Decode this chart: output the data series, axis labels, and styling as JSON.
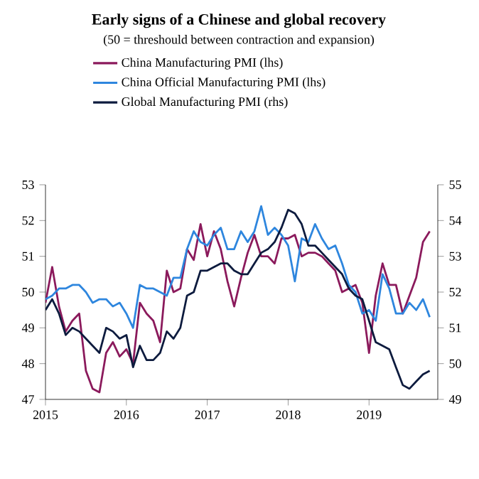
{
  "chart_data": {
    "type": "line",
    "title": "Early signs of a Chinese and global recovery",
    "subtitle": "(50 = threshould between contraction and expansion)",
    "x": [
      2015.0,
      2015.083,
      2015.167,
      2015.25,
      2015.333,
      2015.417,
      2015.5,
      2015.583,
      2015.667,
      2015.75,
      2015.833,
      2015.917,
      2016.0,
      2016.083,
      2016.167,
      2016.25,
      2016.333,
      2016.417,
      2016.5,
      2016.583,
      2016.667,
      2016.75,
      2016.833,
      2016.917,
      2017.0,
      2017.083,
      2017.167,
      2017.25,
      2017.333,
      2017.417,
      2017.5,
      2017.583,
      2017.667,
      2017.75,
      2017.833,
      2017.917,
      2018.0,
      2018.083,
      2018.167,
      2018.25,
      2018.333,
      2018.417,
      2018.5,
      2018.583,
      2018.667,
      2018.75,
      2018.833,
      2018.917,
      2019.0,
      2019.083,
      2019.167,
      2019.25,
      2019.333,
      2019.417,
      2019.5,
      2019.583,
      2019.667,
      2019.75
    ],
    "series": [
      {
        "name": "China Manufacturing PMI (lhs)",
        "color": "#8b1a5c",
        "values": [
          49.7,
          50.7,
          49.6,
          48.9,
          49.2,
          49.4,
          47.8,
          47.3,
          47.2,
          48.3,
          48.6,
          48.2,
          48.4,
          48.0,
          49.7,
          49.4,
          49.2,
          48.6,
          50.6,
          50.0,
          50.1,
          51.2,
          50.9,
          51.9,
          51.0,
          51.7,
          51.2,
          50.3,
          49.6,
          50.4,
          51.1,
          51.6,
          51.0,
          51.0,
          50.8,
          51.5,
          51.5,
          51.6,
          51.0,
          51.1,
          51.1,
          51.0,
          50.8,
          50.6,
          50.0,
          50.1,
          50.2,
          49.7,
          48.3,
          49.9,
          50.8,
          50.2,
          50.2,
          49.4,
          49.9,
          50.4,
          51.4,
          51.7
        ]
      },
      {
        "name": "China Official Manufacturing PMI (lhs)",
        "color": "#2e86de",
        "values": [
          49.8,
          49.9,
          50.1,
          50.1,
          50.2,
          50.2,
          50.0,
          49.7,
          49.8,
          49.8,
          49.6,
          49.7,
          49.4,
          49.0,
          50.2,
          50.1,
          50.1,
          50.0,
          49.9,
          50.4,
          50.4,
          51.2,
          51.7,
          51.4,
          51.3,
          51.6,
          51.8,
          51.2,
          51.2,
          51.7,
          51.4,
          51.7,
          52.4,
          51.6,
          51.8,
          51.6,
          51.3,
          50.3,
          51.5,
          51.4,
          51.9,
          51.5,
          51.2,
          51.3,
          50.8,
          50.2,
          50.0,
          49.4,
          49.5,
          49.2,
          50.5,
          50.1,
          49.4,
          49.4,
          49.7,
          49.5,
          49.8,
          49.3
        ]
      },
      {
        "name": "Global Manufacturing PMI (rhs)",
        "color": "#0d1b3e",
        "axis": "y2",
        "values": [
          51.5,
          51.8,
          51.4,
          50.8,
          51.0,
          50.9,
          50.7,
          50.5,
          50.3,
          51.0,
          50.9,
          50.7,
          50.8,
          49.9,
          50.5,
          50.1,
          50.1,
          50.3,
          50.9,
          50.7,
          51.0,
          51.9,
          52.0,
          52.6,
          52.6,
          52.7,
          52.8,
          52.8,
          52.6,
          52.5,
          52.5,
          52.8,
          53.1,
          53.2,
          53.4,
          53.8,
          54.3,
          54.2,
          53.9,
          53.3,
          53.3,
          53.1,
          52.9,
          52.7,
          52.5,
          52.1,
          51.9,
          51.8,
          51.2,
          50.6,
          50.5,
          50.4,
          49.9,
          49.4,
          49.3,
          49.5,
          49.7,
          49.8
        ]
      }
    ],
    "xlim": [
      2015,
      2019.85
    ],
    "xticks": [
      2015,
      2016,
      2017,
      2018,
      2019
    ],
    "ylim": [
      47,
      53
    ],
    "yticks": [
      47,
      48,
      49,
      50,
      51,
      52,
      53
    ],
    "y2lim": [
      49,
      55
    ],
    "y2ticks": [
      49,
      50,
      51,
      52,
      53,
      54,
      55
    ],
    "legend": "top"
  }
}
